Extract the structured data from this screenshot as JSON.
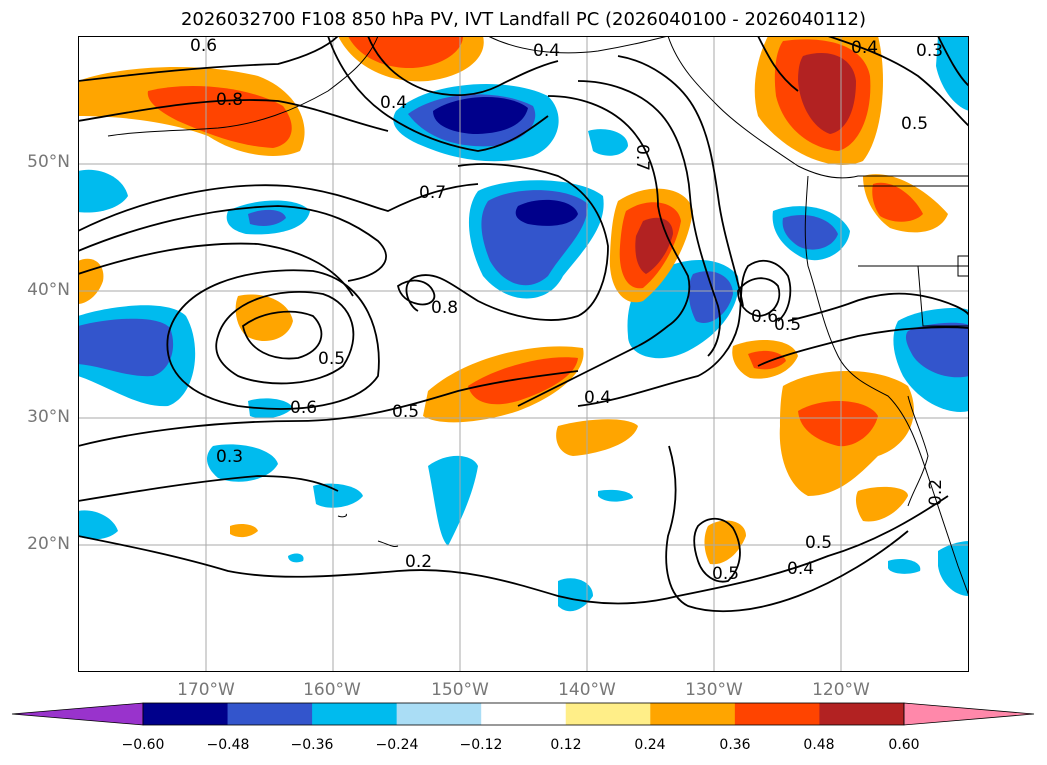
{
  "title": "2026032700 F108 850 hPa PV, IVT Landfall PC (2026040100 - 2026040112)",
  "map": {
    "lat_labels": [
      "50°N",
      "40°N",
      "30°N",
      "20°N"
    ],
    "lon_labels": [
      "170°W",
      "160°W",
      "150°W",
      "140°W",
      "130°W",
      "120°W"
    ],
    "contour_labels": [
      "0.6",
      "0.8",
      "0.4",
      "0.4",
      "0.4",
      "0.3",
      "0.5",
      "0.7",
      "0.7",
      "0.8",
      "0.5",
      "0.6",
      "0.5",
      "0.6",
      "0.5",
      "0.4",
      "0.3",
      "0.2",
      "0.5",
      "0.4",
      "0.5",
      "0.2"
    ]
  },
  "colorbar": {
    "ticks": [
      "−0.60",
      "−0.48",
      "−0.36",
      "−0.24",
      "−0.12",
      "0.12",
      "0.24",
      "0.36",
      "0.48",
      "0.60"
    ],
    "colors": [
      "#9933cc",
      "#00008b",
      "#3355cc",
      "#00bbee",
      "#aaddf5",
      "#ffffff",
      "#ffee88",
      "#ffa500",
      "#ff4400",
      "#b22222",
      "#ff88aa"
    ]
  }
}
